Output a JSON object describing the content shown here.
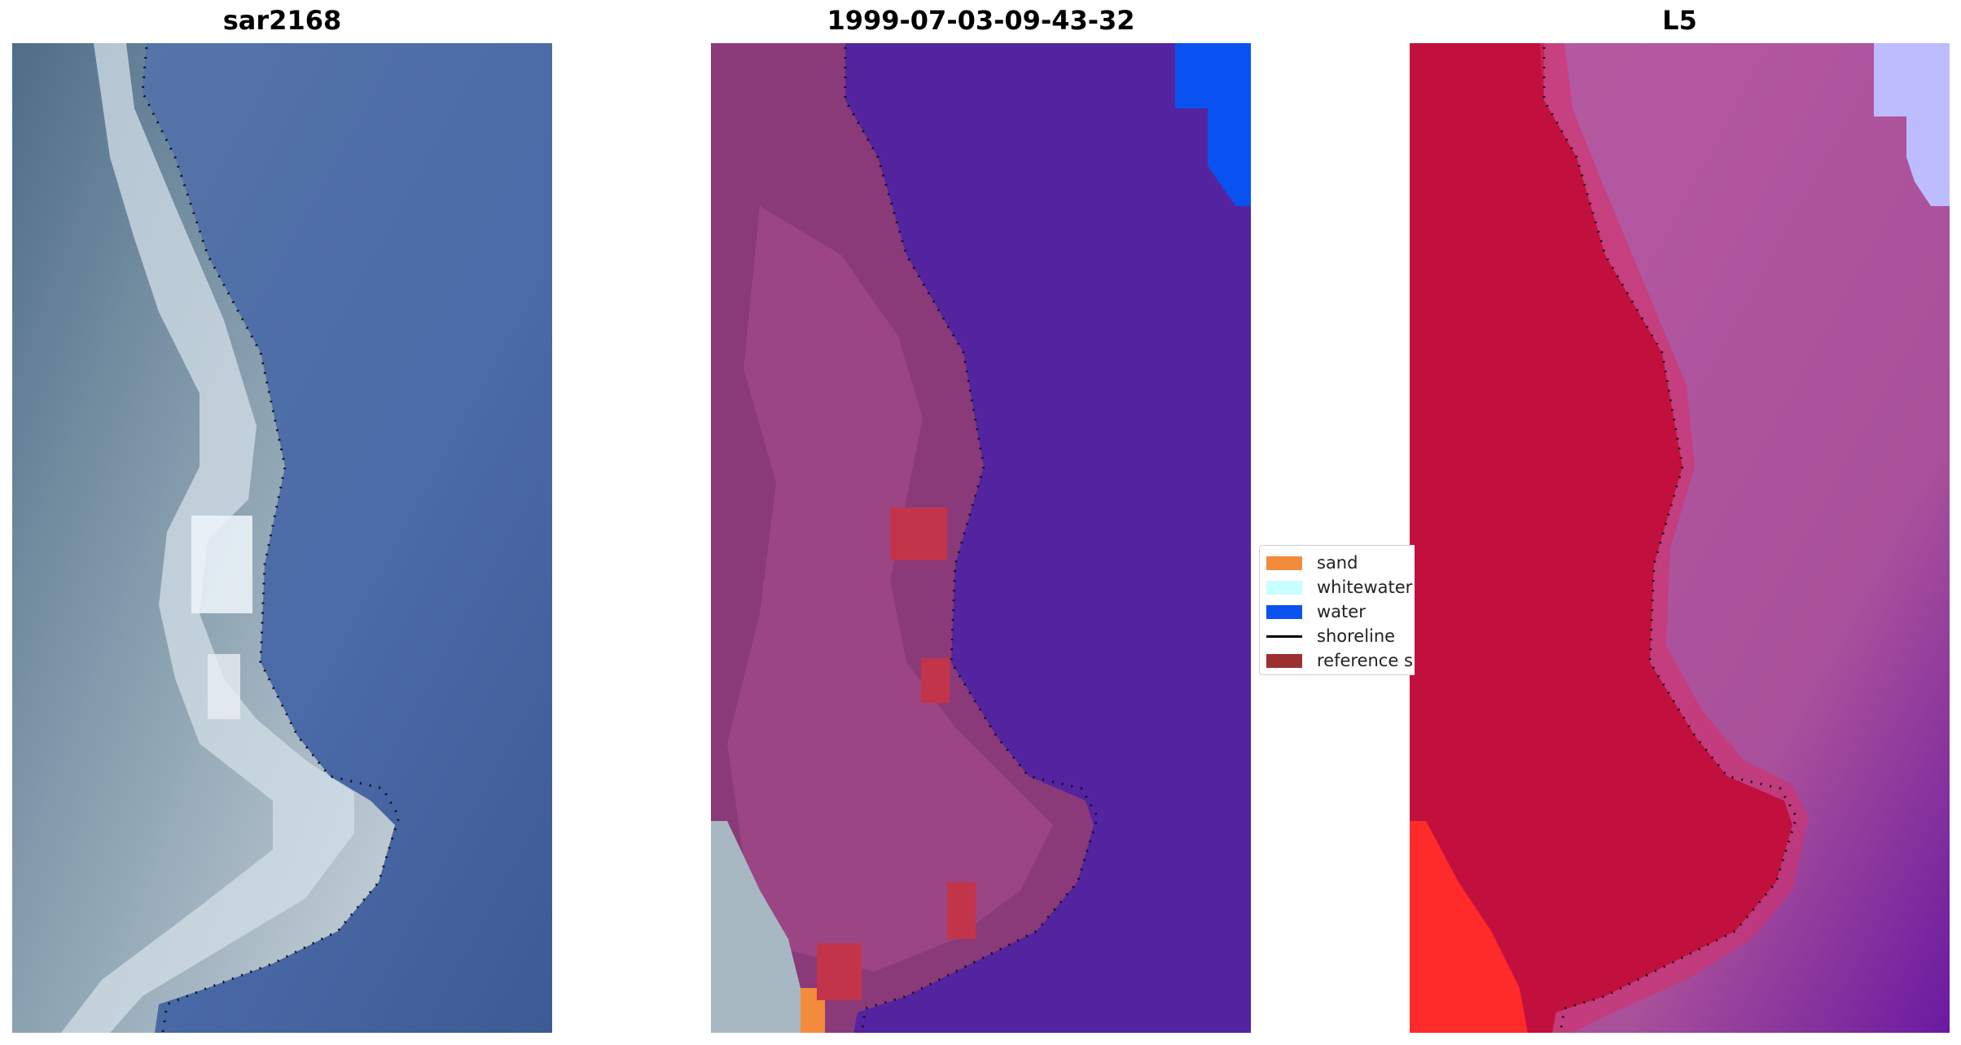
{
  "panels": [
    {
      "title": "sar2168",
      "view": "rgb-image"
    },
    {
      "title": "1999-07-03-09-43-32",
      "view": "classified-overlay"
    },
    {
      "title": "L5",
      "view": "index-image"
    }
  ],
  "legend": {
    "items": [
      {
        "label": "sand",
        "color": "#f28c3c",
        "icon": "swatch"
      },
      {
        "label": "whitewater",
        "color": "#c8ffff",
        "icon": "swatch"
      },
      {
        "label": "water",
        "color": "#0a52f0",
        "icon": "swatch"
      },
      {
        "label": "shoreline",
        "color": "#000000",
        "icon": "line"
      },
      {
        "label": "reference s",
        "color": "#9c3030",
        "icon": "swatch"
      }
    ]
  },
  "colors": {
    "sea_rgb": "#4d6ea8",
    "land_rgb": "#7f97aa",
    "land_overlay": "#8a3a78",
    "water_overlay": "#5424a0",
    "land_index": "#c2103e",
    "water_index": "#b4509e"
  }
}
